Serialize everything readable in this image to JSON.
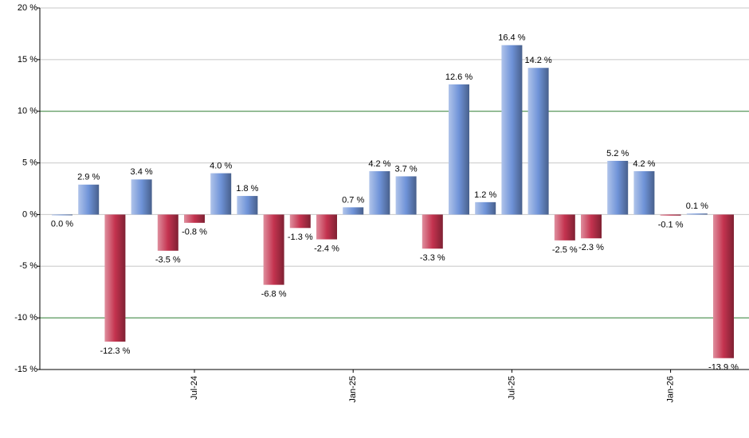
{
  "chart_data": {
    "type": "bar",
    "categories": [
      null,
      null,
      null,
      null,
      null,
      "Jul-24",
      null,
      null,
      null,
      null,
      null,
      "Jan-25",
      null,
      null,
      null,
      null,
      null,
      "Jul-25",
      null,
      null,
      null,
      null,
      null,
      "Jan-26",
      null,
      null
    ],
    "values": [
      0.0,
      2.9,
      -12.3,
      3.4,
      -3.5,
      -0.8,
      4.0,
      1.8,
      -6.8,
      -1.3,
      -2.4,
      0.7,
      4.2,
      3.7,
      -3.3,
      12.6,
      1.2,
      16.4,
      14.2,
      -2.5,
      -2.3,
      5.2,
      4.2,
      -0.1,
      0.1,
      -13.9
    ],
    "value_labels": [
      "0.0 %",
      "2.9 %",
      "-12.3 %",
      "3.4 %",
      "-3.5 %",
      "-0.8 %",
      "4.0 %",
      "1.8 %",
      "-6.8 %",
      "-1.3 %",
      "-2.4 %",
      "0.7 %",
      "4.2 %",
      "3.7 %",
      "-3.3 %",
      "12.6 %",
      "1.2 %",
      "16.4 %",
      "14.2 %",
      "-2.5 %",
      "-2.3 %",
      "5.2 %",
      "4.2 %",
      "-0.1 %",
      "0.1 %",
      "-13.9 %"
    ],
    "positive_color": "#6f93d8",
    "negative_color": "#c4334f",
    "ylim": [
      -15,
      20
    ],
    "yticks": [
      {
        "value": -15,
        "label": "-15 %"
      },
      {
        "value": -10,
        "label": "-10 %"
      },
      {
        "value": -5,
        "label": "-5 %"
      },
      {
        "value": 0,
        "label": "0 %"
      },
      {
        "value": 5,
        "label": "5 %"
      },
      {
        "value": 10,
        "label": "10 %"
      },
      {
        "value": 15,
        "label": "15 %"
      },
      {
        "value": 20,
        "label": "20 %"
      }
    ],
    "grid": true,
    "grid_colors": [
      "#c8c8c8",
      "#2e7d32",
      "#c8c8c8",
      "#c8c8c8",
      "#c8c8c8",
      "#2e7d32",
      "#c8c8c8",
      "#c8c8c8"
    ]
  }
}
